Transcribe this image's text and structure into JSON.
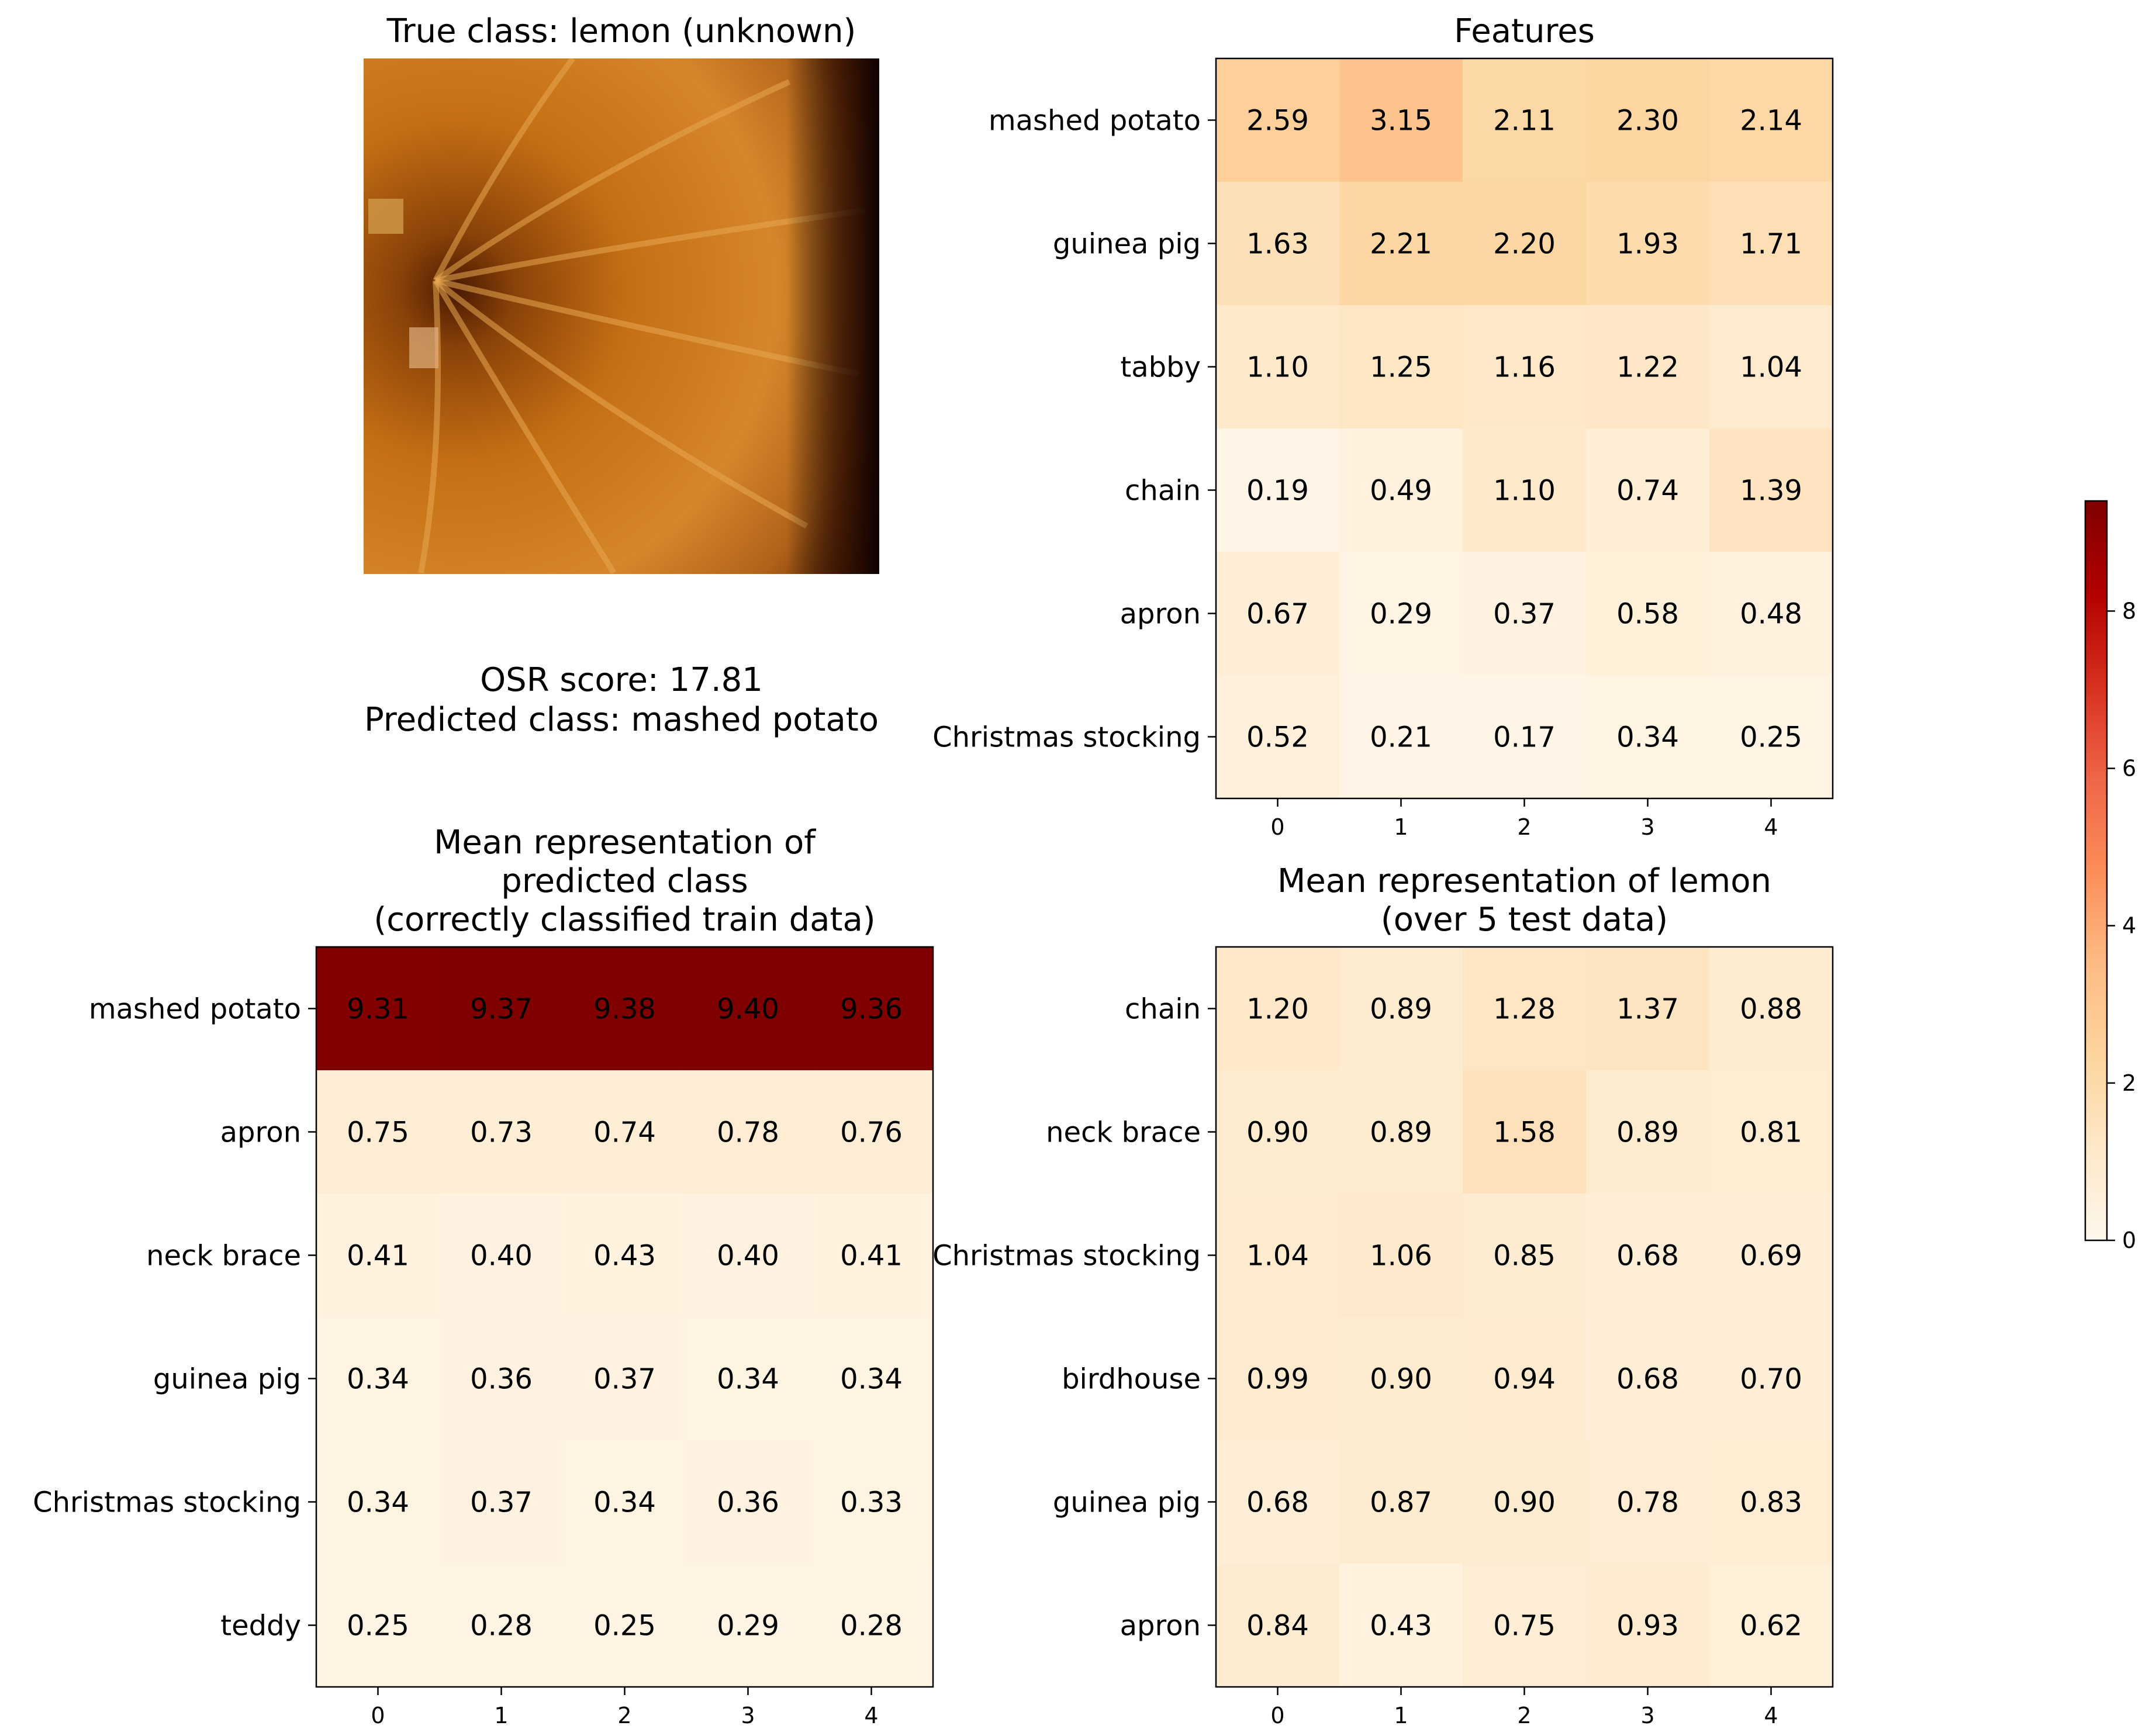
{
  "image_panel": {
    "title": "True class: lemon (unknown)"
  },
  "result": {
    "osr_line": "OSR score: 17.81",
    "pred_line": "Predicted class: mashed potato"
  },
  "colorbar": {
    "ticks": [
      "0",
      "2",
      "4",
      "6",
      "8"
    ],
    "min": 0,
    "max": 9.4
  },
  "chart_data": [
    {
      "type": "heatmap",
      "title": "Features",
      "rows": [
        "mashed potato",
        "guinea pig",
        "tabby",
        "chain",
        "apron",
        "Christmas stocking"
      ],
      "cols": [
        "0",
        "1",
        "2",
        "3",
        "4"
      ],
      "values": [
        [
          2.59,
          3.15,
          2.11,
          2.3,
          2.14
        ],
        [
          1.63,
          2.21,
          2.2,
          1.93,
          1.71
        ],
        [
          1.1,
          1.25,
          1.16,
          1.22,
          1.04
        ],
        [
          0.19,
          0.49,
          1.1,
          0.74,
          1.39
        ],
        [
          0.67,
          0.29,
          0.37,
          0.58,
          0.48
        ],
        [
          0.52,
          0.21,
          0.17,
          0.34,
          0.25
        ]
      ],
      "vmin": 0,
      "vmax": 9.4,
      "colormap": "OrRd"
    },
    {
      "type": "heatmap",
      "title": "Mean representation of\npredicted class\n(correctly classified train data)",
      "rows": [
        "mashed potato",
        "apron",
        "neck brace",
        "guinea pig",
        "Christmas stocking",
        "teddy"
      ],
      "cols": [
        "0",
        "1",
        "2",
        "3",
        "4"
      ],
      "values": [
        [
          9.31,
          9.37,
          9.38,
          9.4,
          9.36
        ],
        [
          0.75,
          0.73,
          0.74,
          0.78,
          0.76
        ],
        [
          0.41,
          0.4,
          0.43,
          0.4,
          0.41
        ],
        [
          0.34,
          0.36,
          0.37,
          0.34,
          0.34
        ],
        [
          0.34,
          0.37,
          0.34,
          0.36,
          0.33
        ],
        [
          0.25,
          0.28,
          0.25,
          0.29,
          0.28
        ]
      ],
      "vmin": 0,
      "vmax": 9.4,
      "colormap": "OrRd"
    },
    {
      "type": "heatmap",
      "title": "Mean representation of lemon\n(over 5 test data)",
      "rows": [
        "chain",
        "neck brace",
        "Christmas stocking",
        "birdhouse",
        "guinea pig",
        "apron"
      ],
      "cols": [
        "0",
        "1",
        "2",
        "3",
        "4"
      ],
      "values": [
        [
          1.2,
          0.89,
          1.28,
          1.37,
          0.88
        ],
        [
          0.9,
          0.89,
          1.58,
          0.89,
          0.81
        ],
        [
          1.04,
          1.06,
          0.85,
          0.68,
          0.69
        ],
        [
          0.99,
          0.9,
          0.94,
          0.68,
          0.7
        ],
        [
          0.68,
          0.87,
          0.9,
          0.78,
          0.83
        ],
        [
          0.84,
          0.43,
          0.75,
          0.93,
          0.62
        ]
      ],
      "vmin": 0,
      "vmax": 9.4,
      "colormap": "OrRd"
    }
  ]
}
